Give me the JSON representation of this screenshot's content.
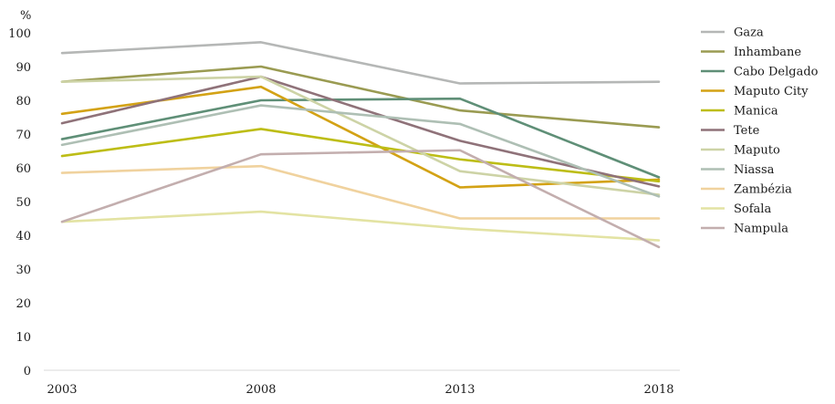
{
  "chart_data": {
    "type": "line",
    "title": "",
    "xlabel": "",
    "ylabel": "%",
    "x": [
      "2003",
      "2008",
      "2013",
      "2018"
    ],
    "ylim": [
      0,
      100
    ],
    "yticks": [
      "0",
      "10",
      "20",
      "30",
      "40",
      "50",
      "60",
      "70",
      "80",
      "90",
      "100"
    ],
    "grid": false,
    "legend_position": "right",
    "series": [
      {
        "name": "Gaza",
        "color": "#b5b7b6",
        "values": [
          94,
          97.2,
          85,
          85.5
        ]
      },
      {
        "name": "Inhambane",
        "color": "#9a9b52",
        "values": [
          85.5,
          90,
          77,
          72
        ]
      },
      {
        "name": "Cabo Delgado",
        "color": "#5f8f77",
        "values": [
          68.5,
          80,
          80.5,
          57.2
        ]
      },
      {
        "name": "Maputo City",
        "color": "#d3a215",
        "values": [
          76,
          84,
          54.2,
          56.5
        ]
      },
      {
        "name": "Manica",
        "color": "#bdbd16",
        "values": [
          63.5,
          71.5,
          62.5,
          56
        ]
      },
      {
        "name": "Tete",
        "color": "#8f7279",
        "values": [
          73.2,
          87,
          68,
          54.5
        ]
      },
      {
        "name": "Maputo",
        "color": "#cdd3a6",
        "values": [
          85.5,
          87,
          59,
          52
        ]
      },
      {
        "name": "Niassa",
        "color": "#aebfb4",
        "values": [
          66.8,
          78.5,
          73,
          51.5
        ]
      },
      {
        "name": "Zambézia",
        "color": "#f0d29e",
        "values": [
          58.5,
          60.5,
          45,
          45
        ]
      },
      {
        "name": "Sofala",
        "color": "#e3e3a3",
        "values": [
          44,
          47,
          42,
          38.5
        ]
      },
      {
        "name": "Nampula",
        "color": "#c3aeae",
        "values": [
          44,
          64,
          65.2,
          36.5
        ]
      }
    ]
  }
}
